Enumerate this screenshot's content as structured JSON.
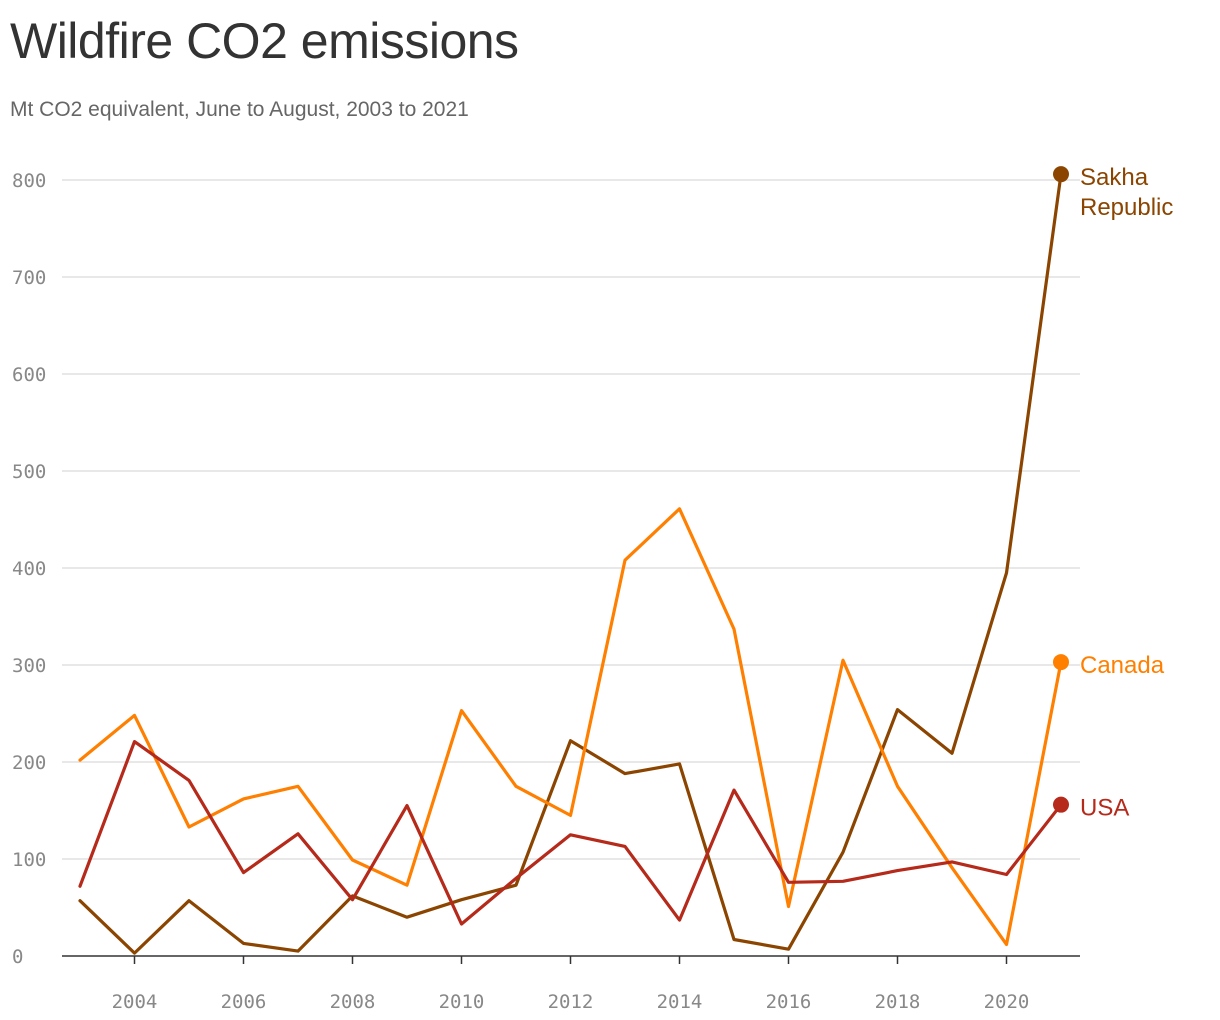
{
  "title": "Wildfire CO2 emissions",
  "subtitle": "Mt CO2 equivalent, June to August, 2003 to 2021",
  "chart_data": {
    "type": "line",
    "title": "Wildfire CO2 emissions",
    "subtitle": "Mt CO2 equivalent, June to August, 2003 to 2021",
    "xlabel": "",
    "ylabel": "",
    "x": [
      2003,
      2004,
      2005,
      2006,
      2007,
      2008,
      2009,
      2010,
      2011,
      2012,
      2013,
      2014,
      2015,
      2016,
      2017,
      2018,
      2019,
      2020,
      2021
    ],
    "xticks": [
      2004,
      2006,
      2008,
      2010,
      2012,
      2014,
      2016,
      2018,
      2020
    ],
    "yticks": [
      0,
      100,
      200,
      300,
      400,
      500,
      600,
      700,
      800
    ],
    "xlim": [
      2002.5,
      2021.5
    ],
    "ylim": [
      0,
      800
    ],
    "grid": "horizontal",
    "legend": "direct labels at line ends",
    "series": [
      {
        "name": "Sakha Republic",
        "color": "#8b4500",
        "values": [
          57,
          3,
          57,
          13,
          5,
          62,
          40,
          58,
          73,
          222,
          188,
          198,
          17,
          7,
          107,
          254,
          209,
          395,
          806
        ]
      },
      {
        "name": "Canada",
        "color": "#ff7f00",
        "values": [
          202,
          248,
          133,
          162,
          175,
          99,
          73,
          253,
          175,
          145,
          408,
          461,
          337,
          51,
          305,
          175,
          91,
          12,
          303
        ]
      },
      {
        "name": "USA",
        "color": "#b52a1a",
        "values": [
          72,
          221,
          181,
          86,
          126,
          58,
          155,
          33,
          80,
          125,
          113,
          37,
          171,
          76,
          77,
          88,
          97,
          84,
          156
        ]
      }
    ],
    "label_lines": {
      "Sakha Republic": [
        "Sakha",
        "Republic"
      ],
      "Canada": [
        "Canada"
      ],
      "USA": [
        "USA"
      ]
    }
  }
}
